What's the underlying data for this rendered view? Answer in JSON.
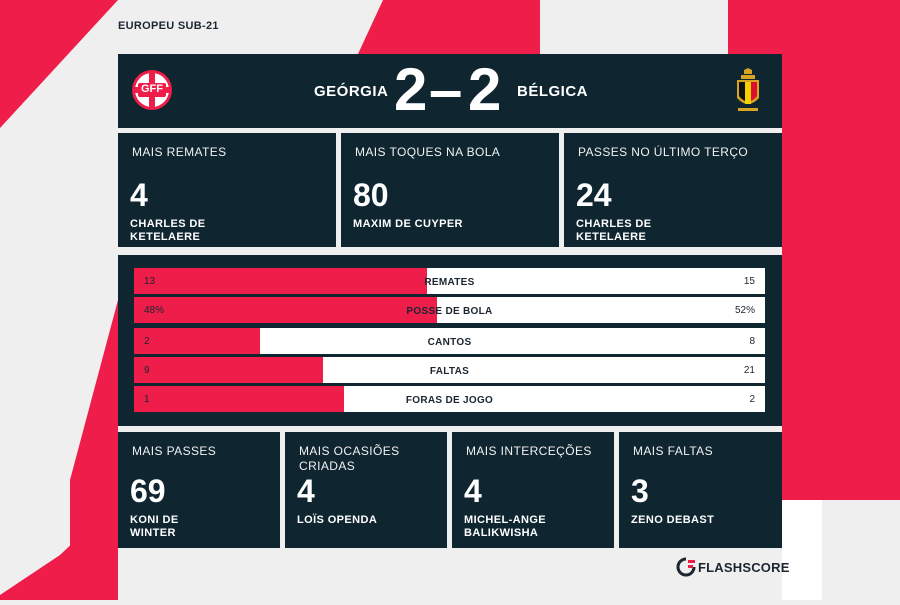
{
  "competition": "EUROPEU SUB-21",
  "home_team": {
    "name": "GEÓRGIA",
    "crest_text": "GFF"
  },
  "away_team": {
    "name": "BÉLGICA"
  },
  "score": {
    "home": "2",
    "separator": "–",
    "away": "2"
  },
  "top_stats": [
    {
      "label": "MAIS REMATES",
      "value": "4",
      "player": [
        "CHARLES DE",
        "KETELAERE"
      ]
    },
    {
      "label": "MAIS TOQUES NA BOLA",
      "value": "80",
      "player": [
        "MAXIM DE CUYPER"
      ]
    },
    {
      "label": "PASSES NO ÚLTIMO TERÇO",
      "value": "24",
      "player": [
        "CHARLES DE",
        "KETELAERE"
      ]
    }
  ],
  "comparison": [
    {
      "name": "REMATES",
      "home": "13",
      "away": "15",
      "home_share": 0.464
    },
    {
      "name": "POSSE DE BOLA",
      "home": "48%",
      "away": "52%",
      "home_share": 0.48
    },
    {
      "name": "CANTOS",
      "home": "2",
      "away": "8",
      "home_share": 0.2
    },
    {
      "name": "FALTAS",
      "home": "9",
      "away": "21",
      "home_share": 0.3
    },
    {
      "name": "FORAS DE JOGO",
      "home": "1",
      "away": "2",
      "home_share": 0.333
    }
  ],
  "bottom_stats": [
    {
      "label": [
        "MAIS PASSES"
      ],
      "value": "69",
      "player": [
        "KONI DE",
        "WINTER"
      ]
    },
    {
      "label": [
        "MAIS OCASIÕES",
        "CRIADAS"
      ],
      "value": "4",
      "player": [
        "LOÏS OPENDA"
      ]
    },
    {
      "label": [
        "MAIS INTERCEÇÕES"
      ],
      "value": "4",
      "player": [
        "MICHEL-ANGE",
        "BALIKWISHA"
      ]
    },
    {
      "label": [
        "MAIS FALTAS"
      ],
      "value": "3",
      "player": [
        "ZENO DEBAST"
      ]
    }
  ],
  "brand": "FLASHSCORE",
  "colors": {
    "accent": "#ee1d4a",
    "panel": "#0f2530",
    "background": "#f0eff0"
  },
  "icons": [
    "gff-crest-icon",
    "belgium-crest-icon",
    "flashscore-logo-icon"
  ]
}
